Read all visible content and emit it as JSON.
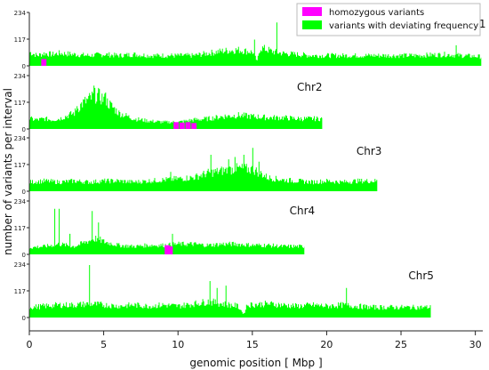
{
  "chart_data": {
    "type": "bar",
    "xlabel": "genomic position [ Mbp ]",
    "ylabel": "number of variants per interval",
    "xlim": [
      0,
      30.5
    ],
    "xticks": [
      0,
      5,
      10,
      15,
      20,
      25,
      30
    ],
    "ylim": [
      0,
      234
    ],
    "yticks": [
      0,
      117,
      234
    ],
    "legend": {
      "position": "top-right",
      "entries": [
        {
          "label": "homozygous variants",
          "color": "#ff00ff"
        },
        {
          "label": "variants with deviating frequency",
          "color": "#00ff00"
        }
      ]
    },
    "colors": {
      "deviating": "#00ff00",
      "homozygous": "#ff00ff"
    },
    "chromosomes": [
      {
        "name": "Chr1",
        "length_mbp": 30.4,
        "deviating_profile": [
          [
            0,
            60
          ],
          [
            0.5,
            45
          ],
          [
            1.0,
            55
          ],
          [
            1.5,
            50
          ],
          [
            2.0,
            55
          ],
          [
            3.0,
            50
          ],
          [
            4.0,
            45
          ],
          [
            5.0,
            50
          ],
          [
            6.0,
            45
          ],
          [
            7.0,
            50
          ],
          [
            8.0,
            45
          ],
          [
            9.0,
            45
          ],
          [
            10.0,
            45
          ],
          [
            11.0,
            45
          ],
          [
            12.0,
            55
          ],
          [
            13.0,
            65
          ],
          [
            14.0,
            70
          ],
          [
            15.0,
            60
          ],
          [
            15.3,
            20
          ],
          [
            15.5,
            80
          ],
          [
            16.5,
            60
          ],
          [
            17.0,
            55
          ],
          [
            18.0,
            50
          ],
          [
            19.0,
            45
          ],
          [
            20.0,
            45
          ],
          [
            22.0,
            45
          ],
          [
            24.0,
            45
          ],
          [
            26.0,
            45
          ],
          [
            28.0,
            50
          ],
          [
            29.0,
            45
          ],
          [
            30.4,
            40
          ]
        ],
        "deviating_peaks": [
          [
            15.1,
            115
          ],
          [
            16.6,
            190
          ],
          [
            28.7,
            90
          ]
        ],
        "homozygous": [
          [
            0.8,
            30
          ]
        ]
      },
      {
        "name": "Chr2",
        "length_mbp": 19.7,
        "deviating_profile": [
          [
            0,
            45
          ],
          [
            0.5,
            40
          ],
          [
            1.0,
            45
          ],
          [
            1.5,
            40
          ],
          [
            2.0,
            45
          ],
          [
            3.0,
            70
          ],
          [
            3.5,
            110
          ],
          [
            4.0,
            130
          ],
          [
            4.5,
            150
          ],
          [
            5.0,
            130
          ],
          [
            5.5,
            100
          ],
          [
            6.0,
            70
          ],
          [
            7.0,
            45
          ],
          [
            8.0,
            35
          ],
          [
            9.0,
            30
          ],
          [
            10.0,
            30
          ],
          [
            11.0,
            40
          ],
          [
            12.0,
            45
          ],
          [
            13.0,
            55
          ],
          [
            14.0,
            60
          ],
          [
            15.0,
            55
          ],
          [
            16.0,
            50
          ],
          [
            17.0,
            50
          ],
          [
            18.0,
            45
          ],
          [
            19.0,
            45
          ],
          [
            19.7,
            45
          ]
        ],
        "deviating_peaks": [
          [
            3.2,
            100
          ],
          [
            4.3,
            190
          ],
          [
            4.7,
            175
          ],
          [
            5.1,
            160
          ]
        ],
        "homozygous": [
          [
            9.7,
            30
          ],
          [
            10.1,
            28
          ],
          [
            10.5,
            30
          ],
          [
            10.9,
            26
          ]
        ]
      },
      {
        "name": "Chr3",
        "length_mbp": 23.4,
        "deviating_profile": [
          [
            0,
            40
          ],
          [
            1.0,
            45
          ],
          [
            2.0,
            40
          ],
          [
            3.0,
            45
          ],
          [
            4.0,
            40
          ],
          [
            5.0,
            45
          ],
          [
            6.0,
            45
          ],
          [
            7.0,
            40
          ],
          [
            8.0,
            45
          ],
          [
            9.0,
            50
          ],
          [
            10.0,
            55
          ],
          [
            11.0,
            60
          ],
          [
            12.0,
            80
          ],
          [
            13.0,
            90
          ],
          [
            14.0,
            100
          ],
          [
            15.0,
            95
          ],
          [
            15.5,
            80
          ],
          [
            16.0,
            60
          ],
          [
            17.0,
            50
          ],
          [
            18.0,
            45
          ],
          [
            19.0,
            40
          ],
          [
            20.0,
            45
          ],
          [
            21.0,
            40
          ],
          [
            22.0,
            45
          ],
          [
            23.4,
            45
          ]
        ],
        "deviating_peaks": [
          [
            12.2,
            160
          ],
          [
            13.4,
            140
          ],
          [
            13.8,
            150
          ],
          [
            14.4,
            160
          ],
          [
            15.0,
            190
          ],
          [
            15.4,
            130
          ],
          [
            9.5,
            85
          ]
        ],
        "homozygous": []
      },
      {
        "name": "Chr4",
        "length_mbp": 18.5,
        "deviating_profile": [
          [
            0,
            30
          ],
          [
            1.0,
            35
          ],
          [
            1.5,
            40
          ],
          [
            2.0,
            45
          ],
          [
            3.0,
            35
          ],
          [
            4.0,
            60
          ],
          [
            4.5,
            70
          ],
          [
            5.0,
            55
          ],
          [
            6.0,
            40
          ],
          [
            7.0,
            35
          ],
          [
            8.0,
            40
          ],
          [
            9.0,
            40
          ],
          [
            10.0,
            45
          ],
          [
            11.0,
            45
          ],
          [
            12.0,
            40
          ],
          [
            13.0,
            45
          ],
          [
            14.0,
            45
          ],
          [
            15.0,
            40
          ],
          [
            16.0,
            40
          ],
          [
            17.0,
            35
          ],
          [
            18.5,
            35
          ]
        ],
        "deviating_peaks": [
          [
            1.7,
            200
          ],
          [
            2.0,
            200
          ],
          [
            2.7,
            90
          ],
          [
            4.2,
            190
          ],
          [
            4.6,
            140
          ],
          [
            9.6,
            90
          ]
        ],
        "homozygous": [
          [
            9.1,
            40
          ],
          [
            9.3,
            35
          ]
        ]
      },
      {
        "name": "Chr5",
        "length_mbp": 27.0,
        "deviating_profile": [
          [
            0,
            45
          ],
          [
            1.0,
            50
          ],
          [
            2.0,
            55
          ],
          [
            3.0,
            55
          ],
          [
            4.0,
            60
          ],
          [
            5.0,
            55
          ],
          [
            6.0,
            50
          ],
          [
            7.0,
            55
          ],
          [
            8.0,
            50
          ],
          [
            9.0,
            55
          ],
          [
            10.0,
            50
          ],
          [
            11.0,
            60
          ],
          [
            12.0,
            70
          ],
          [
            13.0,
            60
          ],
          [
            14.0,
            50
          ],
          [
            14.4,
            15
          ],
          [
            14.6,
            55
          ],
          [
            16.0,
            60
          ],
          [
            17.0,
            55
          ],
          [
            18.0,
            50
          ],
          [
            19.0,
            55
          ],
          [
            20.0,
            50
          ],
          [
            21.0,
            55
          ],
          [
            22.0,
            50
          ],
          [
            23.0,
            45
          ],
          [
            24.0,
            45
          ],
          [
            25.0,
            45
          ],
          [
            26.0,
            45
          ],
          [
            27.0,
            45
          ]
        ],
        "deviating_peaks": [
          [
            4.0,
            230
          ],
          [
            12.1,
            160
          ],
          [
            12.6,
            130
          ],
          [
            13.2,
            140
          ],
          [
            21.3,
            130
          ]
        ],
        "homozygous": []
      }
    ]
  }
}
